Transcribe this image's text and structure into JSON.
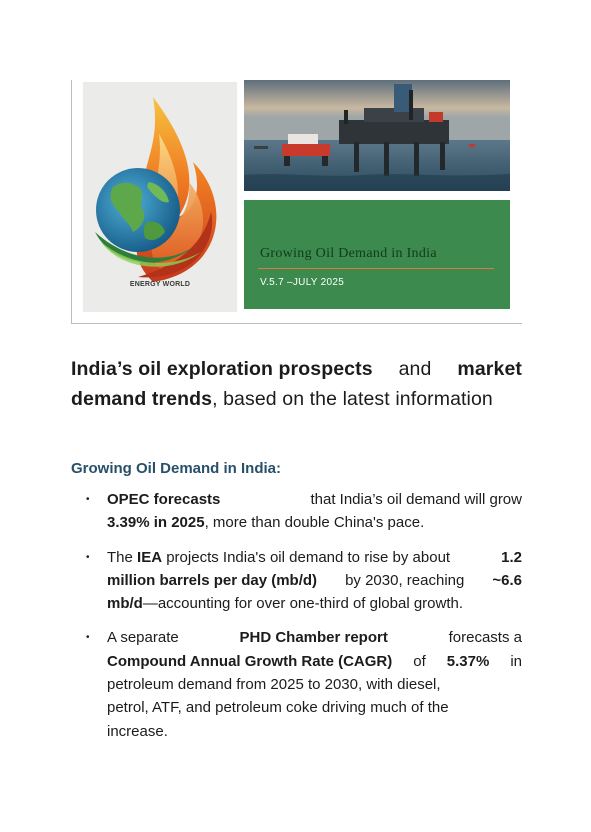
{
  "cover": {
    "logo_caption": "ENERGY WORLD",
    "tile_title": "Growing Oil Demand in India",
    "tile_version": "V.5.7 –JULY 2025",
    "accent_green": "#3c8a4d",
    "accent_orange": "#d97b3a"
  },
  "headline": {
    "line1_part1": "India’s oil exploration prospects",
    "line1_part2": "and",
    "line1_part3": "market",
    "line2_part1": "demand trends",
    "line2_part2": ", based on the latest information"
  },
  "section": {
    "heading": "Growing Oil Demand in India:",
    "heading_color": "#28506a"
  },
  "bullets": [
    {
      "l1_b": "OPEC forecasts",
      "l1_t": "that India’s oil demand will grow",
      "l2_b": "3.39% in 2025",
      "l2_t": ", more than double China's pace."
    },
    {
      "l1_a": "The",
      "l1_b": "IEA",
      "l1_c": "projects India's oil demand to rise by about",
      "l1_d": "1.2",
      "l2_b": "million barrels per day (mb/d)",
      "l2_c": "by 2030, reaching",
      "l2_d": "~6.6",
      "l3_b": "mb/d",
      "l3_c": "—accounting for over one-third of global growth."
    },
    {
      "l1_a": "A separate",
      "l1_b": "PHD Chamber report",
      "l1_c": "forecasts a",
      "l2_b": "Compound Annual Growth Rate (CAGR)",
      "l2_c": "of",
      "l2_d": "5.37%",
      "l2_e": "in",
      "l3": "petroleum demand from 2025 to 2030, with diesel,",
      "l4": "petrol, ATF, and petroleum coke driving much of the",
      "l5": "increase."
    }
  ]
}
